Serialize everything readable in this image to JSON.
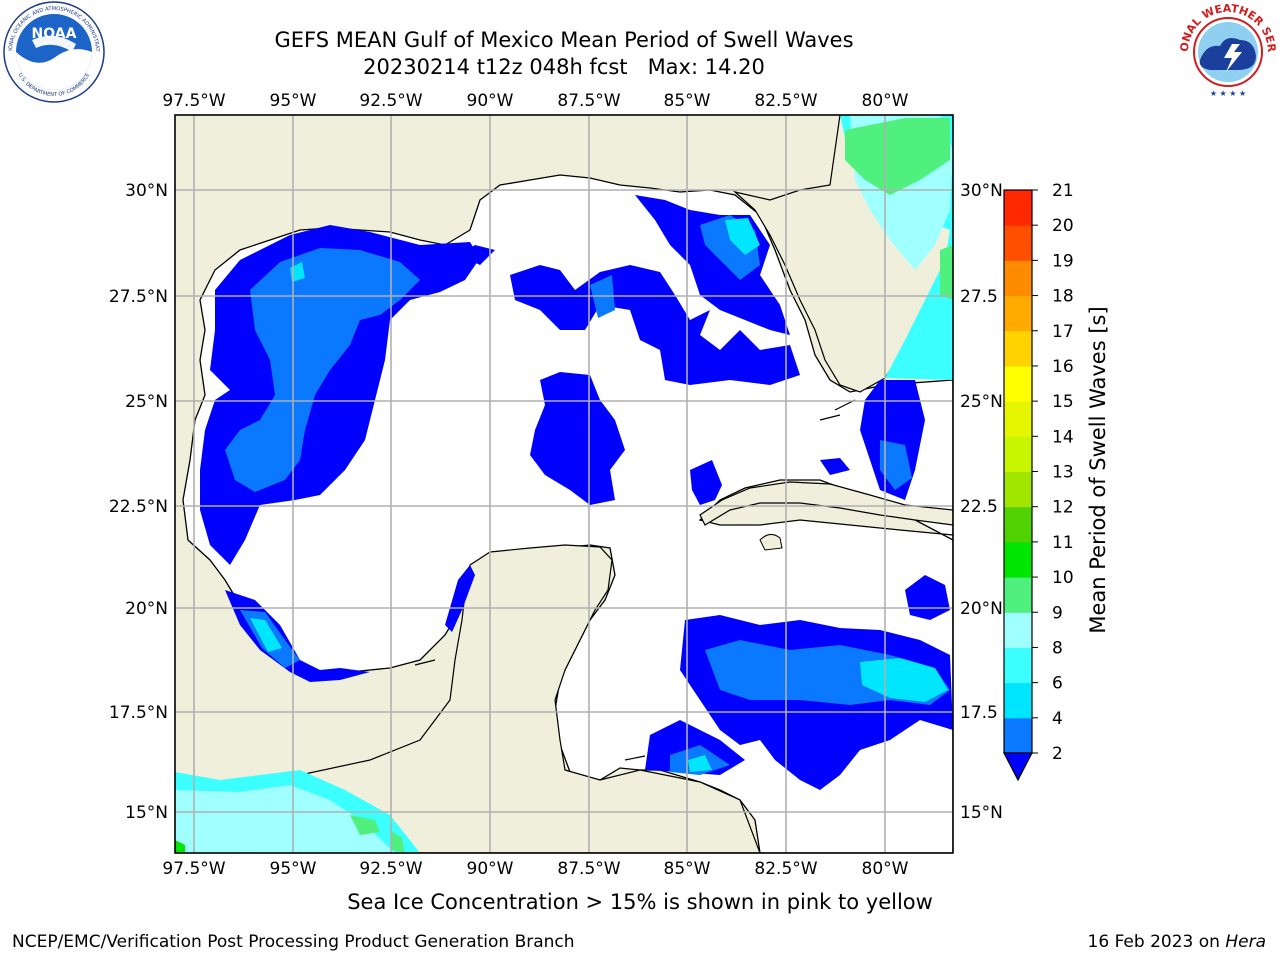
{
  "header": {
    "title_line1": "GEFS MEAN Gulf of Mexico Mean Period of Swell Waves",
    "title_line2": "20230214 t12z 048h fcst   Max: 14.20"
  },
  "logos": {
    "left": "noaa-logo",
    "left_text": "NOAA",
    "left_ring_top": "NATIONAL OCEANIC AND ATMOSPHERIC ADMINISTRATION",
    "left_ring_bottom": "U.S. DEPARTMENT OF COMMERCE",
    "right": "national-weather-service-logo",
    "right_ring_text": "NATIONAL WEATHER SERVICE"
  },
  "map": {
    "lon_labels": [
      "97.5°W",
      "95°W",
      "92.5°W",
      "90°W",
      "87.5°W",
      "85°W",
      "82.5°W",
      "80°W"
    ],
    "lat_labels_left": [
      "30°N",
      "27.5°N",
      "25°N",
      "22.5°N",
      "20°N",
      "17.5°N",
      "15°N"
    ],
    "lat_labels_right": [
      "30°N",
      "27.5",
      "25°N",
      "22.5",
      "20°N",
      "17.5",
      "15°N"
    ],
    "land_color": "#efefdc",
    "ocean_color": "#ffffff"
  },
  "colorbar": {
    "label": "Mean Period of Swell Waves [s]",
    "ticks": [
      "2",
      "4",
      "6",
      "8",
      "9",
      "10",
      "11",
      "12",
      "13",
      "14",
      "15",
      "16",
      "17",
      "18",
      "19",
      "20",
      "21"
    ],
    "colors": [
      "#0000ff",
      "#0a78ff",
      "#00e6ff",
      "#3cffff",
      "#a0ffff",
      "#50f07e",
      "#00e600",
      "#50d200",
      "#a0e600",
      "#c8f500",
      "#e6f500",
      "#ffff00",
      "#ffd200",
      "#ffaa00",
      "#ff8c00",
      "#ff5000",
      "#ff2800",
      "#ff0000"
    ],
    "under_color": "#0000ff"
  },
  "footer": {
    "note": "Sea Ice Concentration > 15% is shown in pink to yellow",
    "credit": "NCEP/EMC/Verification Post Processing Product Generation Branch",
    "date": "16 Feb 2023 on",
    "host": "Hera"
  }
}
